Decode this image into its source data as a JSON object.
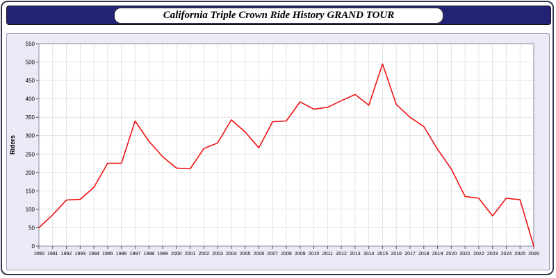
{
  "header": {
    "title": "California Triple Crown Ride History GRAND TOUR"
  },
  "chart_data": {
    "type": "line",
    "title": "California Triple Crown Ride History GRAND TOUR",
    "xlabel": "",
    "ylabel": "Riders",
    "x": [
      1990,
      1991,
      1992,
      1993,
      1994,
      1995,
      1996,
      1997,
      1998,
      1999,
      2000,
      2001,
      2002,
      2003,
      2004,
      2005,
      2006,
      2007,
      2008,
      2009,
      2010,
      2011,
      2012,
      2013,
      2014,
      2015,
      2016,
      2017,
      2018,
      2019,
      2020,
      2021,
      2022,
      2023,
      2024,
      2025,
      2026
    ],
    "series": [
      {
        "name": "Riders",
        "color": "#ee1111",
        "values": [
          50,
          85,
          125,
          127,
          160,
          225,
          225,
          340,
          285,
          243,
          212,
          210,
          265,
          280,
          343,
          310,
          267,
          338,
          340,
          392,
          372,
          377,
          395,
          412,
          383,
          495,
          385,
          350,
          325,
          263,
          210,
          135,
          130,
          82,
          130,
          126,
          0
        ]
      }
    ],
    "ylim": [
      0,
      550
    ],
    "ytick_step": 50,
    "grid": true,
    "legend_position": "none",
    "plot_bg": "#ffffff",
    "grid_color": "#d9d9d9",
    "axis_color": "#8a8aa0"
  }
}
